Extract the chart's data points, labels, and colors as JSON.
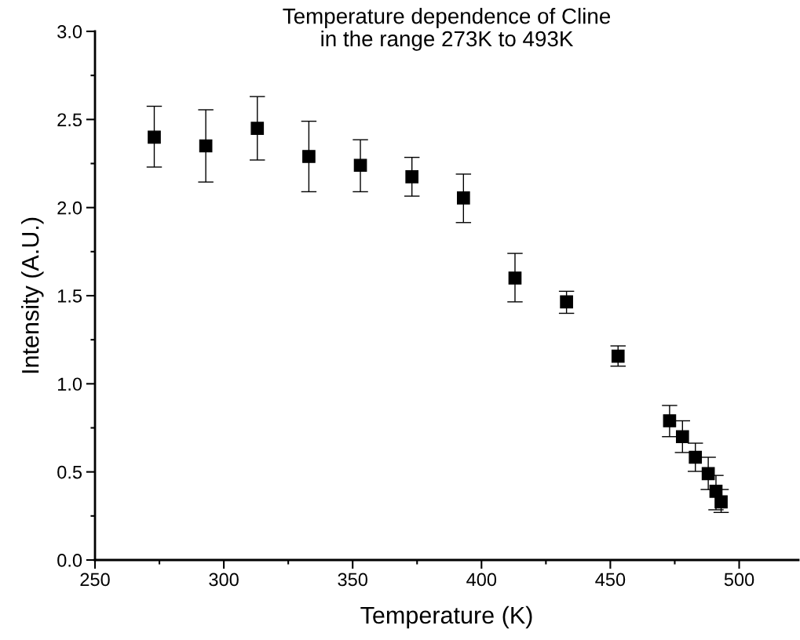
{
  "chart_data": {
    "type": "scatter",
    "title": "Temperature dependence of Cline\nin the range 273K to 493K",
    "xlabel": "Temperature (K)",
    "ylabel": "Intensity (A.U.)",
    "x": [
      273,
      293,
      313,
      333,
      353,
      373,
      393,
      413,
      433,
      453,
      473,
      478,
      483,
      488,
      491,
      493
    ],
    "series": [
      {
        "color": "#000000",
        "values": [
          2.4,
          2.35,
          2.45,
          2.29,
          2.24,
          2.175,
          2.055,
          1.6,
          1.465,
          1.157,
          0.79,
          0.7,
          0.583,
          0.49,
          0.39,
          0.33
        ],
        "errors": [
          [
            2.23,
            2.575
          ],
          [
            2.145,
            2.555
          ],
          [
            2.27,
            2.63
          ],
          [
            2.09,
            2.49
          ],
          [
            2.09,
            2.385
          ],
          [
            2.065,
            2.285
          ],
          [
            1.915,
            2.19
          ],
          [
            1.465,
            1.74
          ],
          [
            1.4,
            1.525
          ],
          [
            1.1,
            1.215
          ],
          [
            0.7,
            0.877
          ],
          [
            0.61,
            0.79
          ],
          [
            0.503,
            0.663
          ],
          [
            0.4,
            0.583
          ],
          [
            0.285,
            0.48
          ],
          [
            0.27,
            0.4
          ]
        ]
      }
    ],
    "marker": "square",
    "xlim": [
      250,
      523
    ],
    "ylim": [
      0,
      3.0
    ],
    "xticks": [
      250,
      300,
      350,
      400,
      450,
      500,
      {
        "value": 275,
        "label": null
      },
      {
        "value": 325,
        "label": null
      },
      {
        "value": 375,
        "label": null
      },
      {
        "value": 425,
        "label": null
      },
      {
        "value": 475,
        "label": null
      }
    ],
    "yticks": [
      {
        "value": 0,
        "label": "0.0"
      },
      0.5,
      {
        "value": 1,
        "label": "1.0"
      },
      1.5,
      {
        "value": 2,
        "label": "2.0"
      },
      2.5,
      {
        "value": 3,
        "label": "3.0"
      },
      {
        "value": 0.25,
        "label": null
      },
      {
        "value": 0.75,
        "label": null
      },
      {
        "value": 1.25,
        "label": null
      },
      {
        "value": 1.75,
        "label": null
      },
      {
        "value": 2.25,
        "label": null
      },
      {
        "value": 2.75,
        "label": null
      }
    ],
    "grid": false,
    "legend": false
  }
}
